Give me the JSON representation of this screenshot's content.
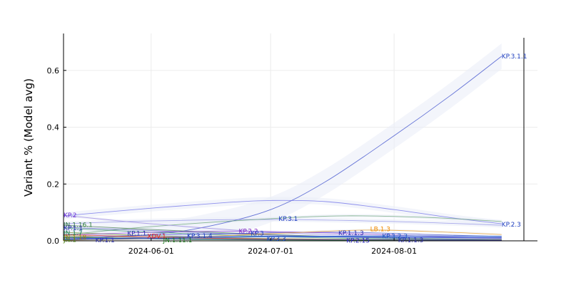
{
  "chart_data": {
    "type": "line",
    "title": "",
    "xlabel": "",
    "ylabel": "Variant % (Model avg)",
    "x_start": "2024-05-10",
    "x_end": "2024-08-28",
    "xlim": [
      "2024-05-10",
      "2024-09-06"
    ],
    "ylim": [
      0,
      0.73
    ],
    "x_ticks": [
      {
        "date": "2024-06-01",
        "label": "2024-06-01"
      },
      {
        "date": "2024-07-01",
        "label": "2024-07-01"
      },
      {
        "date": "2024-08-01",
        "label": "2024-08-01"
      }
    ],
    "y_ticks": [
      {
        "value": 0.0,
        "label": "0.0"
      },
      {
        "value": 0.2,
        "label": "0.2"
      },
      {
        "value": 0.4,
        "label": "0.4"
      },
      {
        "value": 0.6,
        "label": "0.6"
      }
    ],
    "grid": true,
    "legend": "none",
    "band_fill": "#e9ecf8",
    "series": [
      {
        "name": "KP.3.1.1",
        "color": "#3346c9",
        "label_color": "#1f3fbf",
        "label_pos": "end",
        "band": 0.045,
        "points": [
          [
            "2024-05-10",
            0.005
          ],
          [
            "2024-06-01",
            0.022
          ],
          [
            "2024-06-15",
            0.05
          ],
          [
            "2024-07-01",
            0.11
          ],
          [
            "2024-07-15",
            0.21
          ],
          [
            "2024-08-01",
            0.37
          ],
          [
            "2024-08-15",
            0.51
          ],
          [
            "2024-08-28",
            0.65
          ]
        ]
      },
      {
        "name": "KP.2.3",
        "color": "#6c6ee8",
        "label_color": "#1f3fbf",
        "label_pos": "end",
        "band": 0.012,
        "points": [
          [
            "2024-05-10",
            0.088
          ],
          [
            "2024-06-01",
            0.115
          ],
          [
            "2024-06-20",
            0.135
          ],
          [
            "2024-07-01",
            0.142
          ],
          [
            "2024-07-15",
            0.138
          ],
          [
            "2024-08-01",
            0.11
          ],
          [
            "2024-08-15",
            0.082
          ],
          [
            "2024-08-28",
            0.06
          ]
        ]
      },
      {
        "name": "KP.3",
        "color": "#8f8fe6",
        "label_color": "#1f3fbf",
        "label_pos": "end",
        "band": 0.008,
        "points": [
          [
            "2024-05-10",
            0.06
          ],
          [
            "2024-06-01",
            0.07
          ],
          [
            "2024-07-01",
            0.075
          ],
          [
            "2024-08-01",
            0.068
          ],
          [
            "2024-08-28",
            0.055
          ]
        ]
      },
      {
        "name": "KP.3.1",
        "color": "#63a070",
        "label_color": "#1f3fbf",
        "label_pos": "mid",
        "label_at": [
          "2024-07-02",
          0.079
        ],
        "band": 0.006,
        "points": [
          [
            "2024-05-10",
            0.02
          ],
          [
            "2024-06-01",
            0.05
          ],
          [
            "2024-07-01",
            0.078
          ],
          [
            "2024-07-20",
            0.088
          ],
          [
            "2024-08-10",
            0.082
          ],
          [
            "2024-08-28",
            0.068
          ]
        ]
      },
      {
        "name": "KP.2",
        "color": "#9a86e0",
        "label_color": "#6b2fd6",
        "label_pos": "start",
        "band": 0.005,
        "points": [
          [
            "2024-05-10",
            0.09
          ],
          [
            "2024-06-01",
            0.06
          ],
          [
            "2024-07-01",
            0.03
          ],
          [
            "2024-08-01",
            0.015
          ],
          [
            "2024-08-28",
            0.008
          ]
        ]
      },
      {
        "name": "JN.1.16.1",
        "color": "#4a7d52",
        "label_color": "#2f7d3a",
        "label_pos": "start",
        "band": 0.003,
        "points": [
          [
            "2024-05-10",
            0.055
          ],
          [
            "2024-06-01",
            0.04
          ],
          [
            "2024-07-01",
            0.022
          ],
          [
            "2024-08-01",
            0.01
          ],
          [
            "2024-08-28",
            0.005
          ]
        ]
      },
      {
        "name": "KP.1.1",
        "color": "#5a5fc0",
        "label_color": "#2d2fb0",
        "label_pos": "start",
        "band": 0.003,
        "points": [
          [
            "2024-05-10",
            0.048
          ],
          [
            "2024-06-01",
            0.036
          ],
          [
            "2024-07-01",
            0.02
          ],
          [
            "2024-08-01",
            0.009
          ],
          [
            "2024-08-28",
            0.004
          ]
        ]
      },
      {
        "name": "JN.1.7",
        "color": "#2f8d6a",
        "label_color": "#0f7a5a",
        "label_pos": "start",
        "band": 0.003,
        "points": [
          [
            "2024-05-10",
            0.045
          ],
          [
            "2024-06-01",
            0.03
          ],
          [
            "2024-07-01",
            0.015
          ],
          [
            "2024-08-01",
            0.006
          ],
          [
            "2024-08-28",
            0.003
          ]
        ]
      },
      {
        "name": "JN.1",
        "color": "#7a9a3a",
        "label_color": "#4f8a1a",
        "label_pos": "start",
        "band": 0.002,
        "points": [
          [
            "2024-05-10",
            0.03
          ],
          [
            "2024-06-01",
            0.018
          ],
          [
            "2024-07-01",
            0.008
          ],
          [
            "2024-08-01",
            0.004
          ],
          [
            "2024-08-28",
            0.002
          ]
        ]
      },
      {
        "name": "JN.1.18",
        "color": "#b59b2a",
        "label_color": "#9a8010",
        "label_pos": "start",
        "band": 0.002,
        "points": [
          [
            "2024-05-10",
            0.018
          ],
          [
            "2024-06-01",
            0.012
          ],
          [
            "2024-07-01",
            0.006
          ],
          [
            "2024-08-01",
            0.003
          ],
          [
            "2024-08-28",
            0.001
          ]
        ]
      },
      {
        "name": "JN.1.13.1",
        "color": "#3a8a3a",
        "label_color": "#2a7a2a",
        "label_pos": "start",
        "band": 0.002,
        "points": [
          [
            "2024-05-10",
            0.012
          ],
          [
            "2024-06-01",
            0.008
          ],
          [
            "2024-07-01",
            0.004
          ],
          [
            "2024-08-01",
            0.002
          ],
          [
            "2024-08-28",
            0.001
          ]
        ]
      },
      {
        "name": "KP.1.1.3",
        "color": "#4b4fd0",
        "label_color": "#2d2fb0",
        "label_pos": "mid",
        "label_at": [
          "2024-07-20",
          0.028
        ],
        "band": 0.004,
        "points": [
          [
            "2024-05-10",
            0.012
          ],
          [
            "2024-06-01",
            0.02
          ],
          [
            "2024-07-01",
            0.028
          ],
          [
            "2024-07-20",
            0.03
          ],
          [
            "2024-08-10",
            0.022
          ],
          [
            "2024-08-28",
            0.015
          ]
        ]
      },
      {
        "name": "KP.2.2",
        "color": "#8a3ad0",
        "label_color": "#7a20c0",
        "label_pos": "mid",
        "label_at": [
          "2024-06-22",
          0.034
        ],
        "band": 0.003,
        "points": [
          [
            "2024-05-10",
            0.02
          ],
          [
            "2024-06-01",
            0.03
          ],
          [
            "2024-06-22",
            0.034
          ],
          [
            "2024-07-15",
            0.028
          ],
          [
            "2024-08-10",
            0.016
          ],
          [
            "2024-08-28",
            0.01
          ]
        ]
      },
      {
        "name": "LB.1.3",
        "color": "#f0a020",
        "label_color": "#f08a00",
        "label_pos": "mid",
        "label_at": [
          "2024-07-25",
          0.042
        ],
        "band": 0.004,
        "points": [
          [
            "2024-05-10",
            0.002
          ],
          [
            "2024-06-01",
            0.008
          ],
          [
            "2024-07-01",
            0.025
          ],
          [
            "2024-07-25",
            0.038
          ],
          [
            "2024-08-15",
            0.03
          ],
          [
            "2024-08-28",
            0.022
          ]
        ]
      },
      {
        "name": "KP.3.2.3",
        "color": "#2a6ad0",
        "label_color": "#1a5ac0",
        "label_pos": "mid",
        "label_at": [
          "2024-08-01",
          0.016
        ],
        "band": 0.003,
        "points": [
          [
            "2024-05-10",
            0.004
          ],
          [
            "2024-06-01",
            0.008
          ],
          [
            "2024-07-01",
            0.014
          ],
          [
            "2024-08-01",
            0.018
          ],
          [
            "2024-08-28",
            0.016
          ]
        ]
      },
      {
        "name": "KP.3.1.4",
        "color": "#2a4ad0",
        "label_color": "#1a3ac0",
        "label_pos": "mid",
        "label_at": [
          "2024-06-13",
          0.018
        ],
        "band": 0.002,
        "points": [
          [
            "2024-05-10",
            0.006
          ],
          [
            "2024-06-13",
            0.015
          ],
          [
            "2024-07-15",
            0.014
          ],
          [
            "2024-08-28",
            0.01
          ]
        ]
      },
      {
        "name": "XDV.1",
        "color": "#e03030",
        "label_color": "#e02020",
        "label_pos": "mid",
        "label_at": [
          "2024-05-30",
          0.015
        ],
        "band": 0.002,
        "points": [
          [
            "2024-05-10",
            0.022
          ],
          [
            "2024-06-01",
            0.014
          ],
          [
            "2024-07-01",
            0.006
          ],
          [
            "2024-08-01",
            0.003
          ],
          [
            "2024-08-28",
            0.002
          ]
        ]
      },
      {
        "name": "JN.1.11.1",
        "color": "#2a8a2a",
        "label_color": "#1a7a1a",
        "label_pos": "mid",
        "label_at": [
          "2024-06-04",
          0.004
        ],
        "band": 0.002,
        "points": [
          [
            "2024-05-10",
            0.014
          ],
          [
            "2024-06-04",
            0.006
          ],
          [
            "2024-07-01",
            0.003
          ],
          [
            "2024-08-28",
            0.001
          ]
        ]
      },
      {
        "name": "KP.3.3",
        "color": "#2a5ad0",
        "label_color": "#1a4ac0",
        "label_pos": "mid",
        "label_at": [
          "2024-07-02",
          0.018
        ],
        "band": 0.002,
        "points": [
          [
            "2024-05-10",
            0.004
          ],
          [
            "2024-06-15",
            0.012
          ],
          [
            "2024-07-02",
            0.016
          ],
          [
            "2024-08-28",
            0.012
          ]
        ]
      },
      {
        "name": "KP.2.15",
        "color": "#3a3ad0",
        "label_color": "#2a2ac0",
        "label_pos": "mid",
        "label_at": [
          "2024-07-15",
          0.002
        ],
        "band": 0.002,
        "points": [
          [
            "2024-05-10",
            0.01
          ],
          [
            "2024-06-15",
            0.006
          ],
          [
            "2024-07-15",
            0.004
          ],
          [
            "2024-08-28",
            0.002
          ]
        ]
      }
    ]
  },
  "visible_labels": [
    {
      "text": "KP.3.1.1",
      "x": "2024-08-28",
      "y": 0.65,
      "anchor": "start",
      "color": "#1f3fbf"
    },
    {
      "text": "KP.2.3",
      "x": "2024-08-28",
      "y": 0.058,
      "anchor": "start",
      "color": "#1f3fbf"
    },
    {
      "text": "KP.2",
      "x": "2024-05-10",
      "y": 0.09,
      "anchor": "start",
      "color": "#6b2fd6"
    },
    {
      "text": "JN.1.16.1",
      "x": "2024-05-10",
      "y": 0.056,
      "anchor": "start",
      "color": "#2f7d3a"
    },
    {
      "text": "KP.1.1",
      "x": "2024-05-10",
      "y": 0.045,
      "anchor": "start",
      "color": "#2d2fb0"
    },
    {
      "text": "JN.1.7",
      "x": "2024-05-10",
      "y": 0.028,
      "anchor": "start",
      "color": "#0f7a5a"
    },
    {
      "text": "JN.1.18",
      "x": "2024-05-10",
      "y": 0.012,
      "anchor": "start",
      "color": "#9a8010"
    },
    {
      "text": "JN.1",
      "x": "2024-05-10",
      "y": 0.004,
      "anchor": "start",
      "color": "#4f8a1a"
    },
    {
      "text": "KP.1.1",
      "x": "2024-05-18",
      "y": 0.002,
      "anchor": "start",
      "color": "#2d2fb0"
    },
    {
      "text": "KP.1.1",
      "x": "2024-05-26",
      "y": 0.026,
      "anchor": "start",
      "color": "#2d2fb0"
    },
    {
      "text": "XDV.1",
      "x": "2024-05-31",
      "y": 0.016,
      "anchor": "start",
      "color": "#e02020"
    },
    {
      "text": "JN.1.11.1",
      "x": "2024-06-04",
      "y": 0.002,
      "anchor": "start",
      "color": "#1a7a1a"
    },
    {
      "text": "KP.3.1.4",
      "x": "2024-06-10",
      "y": 0.018,
      "anchor": "start",
      "color": "#1a3ac0"
    },
    {
      "text": "KP.3.1",
      "x": "2024-07-03",
      "y": 0.078,
      "anchor": "start",
      "color": "#1f3fbf"
    },
    {
      "text": "KP.2.2",
      "x": "2024-06-23",
      "y": 0.034,
      "anchor": "start",
      "color": "#7a20c0"
    },
    {
      "text": "KP.3",
      "x": "2024-06-26",
      "y": 0.026,
      "anchor": "start",
      "color": "#1f3fbf"
    },
    {
      "text": "KP.3.3",
      "x": "2024-06-30",
      "y": 0.008,
      "anchor": "start",
      "color": "#1a4ac0"
    },
    {
      "text": "KP.1.1.3",
      "x": "2024-07-18",
      "y": 0.028,
      "anchor": "start",
      "color": "#2d2fb0"
    },
    {
      "text": "LB.1.3",
      "x": "2024-07-26",
      "y": 0.042,
      "anchor": "start",
      "color": "#f08a00"
    },
    {
      "text": "KP.3.2.3",
      "x": "2024-07-29",
      "y": 0.016,
      "anchor": "start",
      "color": "#1a5ac0"
    },
    {
      "text": "KP.2.15",
      "x": "2024-07-20",
      "y": 0.001,
      "anchor": "start",
      "color": "#2a2ac0"
    },
    {
      "text": "KP.1.1.3",
      "x": "2024-08-02",
      "y": 0.002,
      "anchor": "start",
      "color": "#2d2fb0"
    }
  ]
}
